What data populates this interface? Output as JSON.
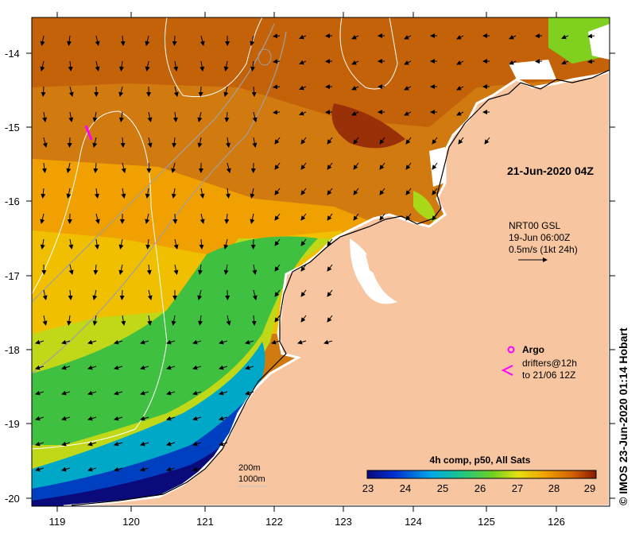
{
  "map": {
    "date_stamp": "21-Jun-2020 04Z",
    "y_ticks": [
      "-14",
      "-15",
      "-16",
      "-17",
      "-18",
      "-19",
      "-20"
    ],
    "x_ticks": [
      "119",
      "120",
      "121",
      "122",
      "123",
      "124",
      "125",
      "126"
    ],
    "currents_legend": {
      "line1": "NRT00 GSL",
      "line2": "19-Jun 06:00Z",
      "line3": "0.5m/s (1kt 24h)"
    },
    "argo_label": "Argo",
    "drifters_line1": "drifters@12h",
    "drifters_line2": "to 21/06 12Z",
    "isobath_200": "200m",
    "isobath_1000": "1000m",
    "colorbar": {
      "title": "4h comp, p50, All Sats",
      "ticks": [
        "23",
        "24",
        "25",
        "26",
        "27",
        "28",
        "29"
      ]
    },
    "credit": "© IMOS 23-Jun-2020 01:14 Hobart",
    "colors": {
      "land": "#f7c6a0",
      "warm": "#b3450a",
      "marker": "#ff00ff"
    }
  }
}
